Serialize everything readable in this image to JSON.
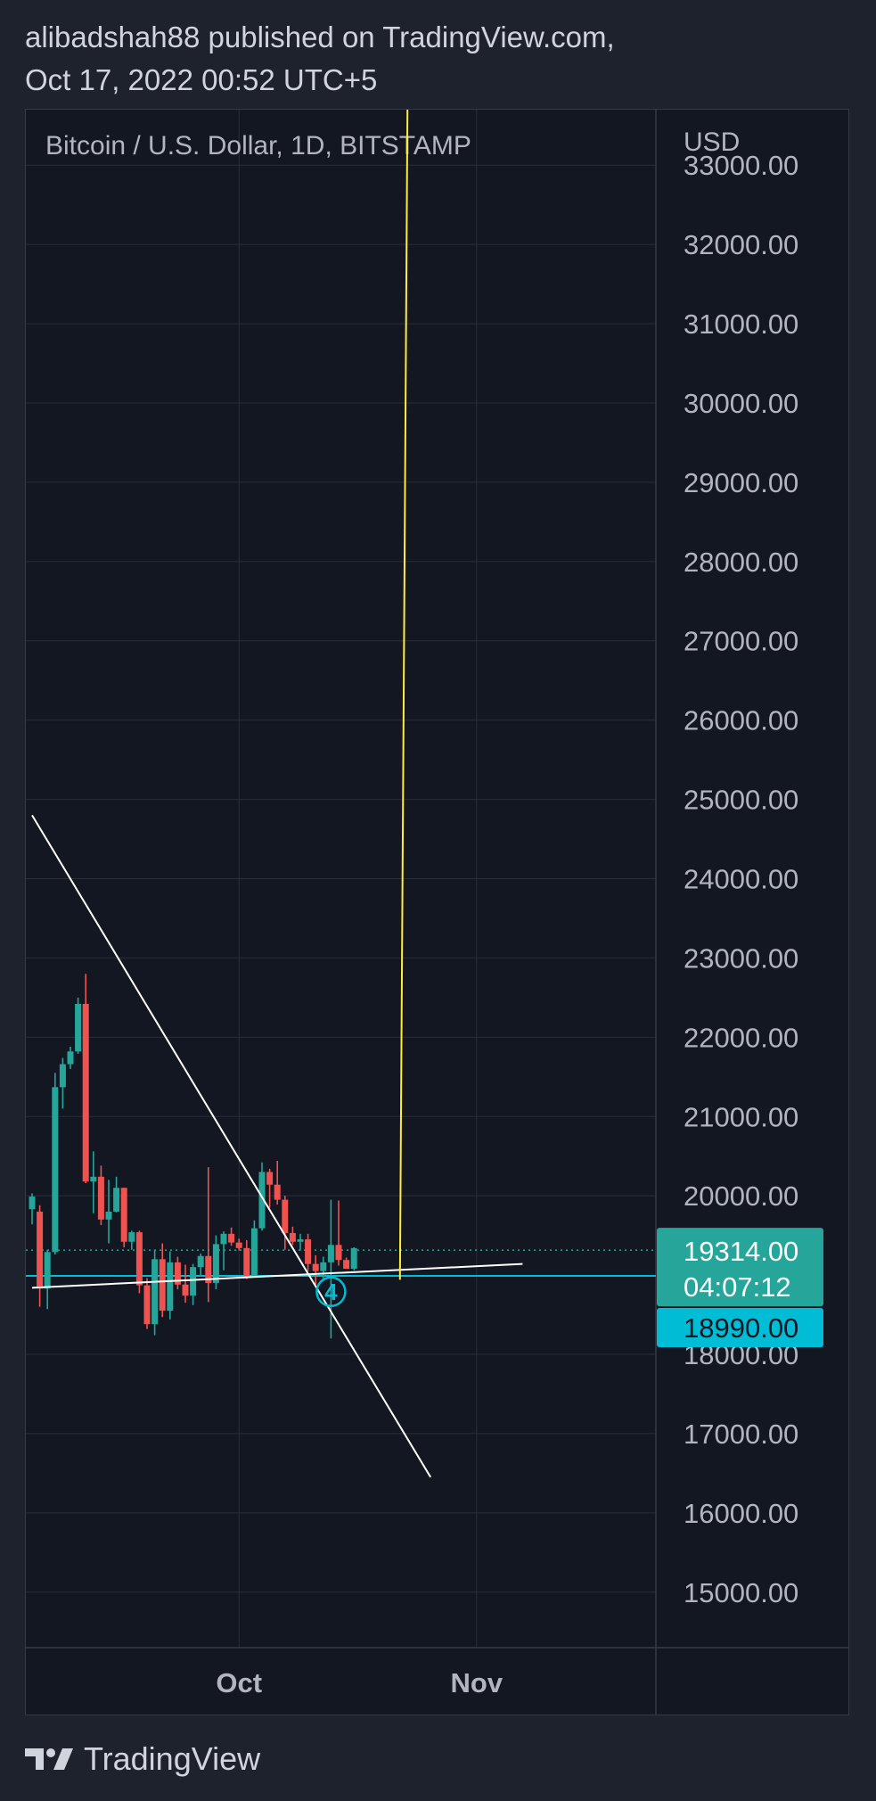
{
  "header": {
    "line1": "alibadshah88 published on TradingView.com,",
    "line2": "Oct 17, 2022 00:52 UTC+5"
  },
  "footer": {
    "brand": "TradingView"
  },
  "colors": {
    "background": "#131722",
    "grid": "#2a2e39",
    "up": "#26a69a",
    "down": "#ef5350",
    "trendline": "#ffffff",
    "vertical_line": "#ffeb3b",
    "level_line": "#00bcd4",
    "price_tag": "#26a69a",
    "level_tag": "#00bcd4"
  },
  "chart_data": {
    "type": "candlestick",
    "title": "Bitcoin / U.S. Dollar, 1D, BITSTAMP",
    "y_unit": "USD",
    "y_ticks": [
      33000,
      32000,
      31000,
      30000,
      29000,
      28000,
      27000,
      26000,
      25000,
      24000,
      23000,
      22000,
      21000,
      20000,
      18000,
      17000,
      16000,
      15000
    ],
    "y_tick_labels": [
      "33000.00",
      "32000.00",
      "31000.00",
      "30000.00",
      "29000.00",
      "28000.00",
      "27000.00",
      "26000.00",
      "25000.00",
      "24000.00",
      "23000.00",
      "22000.00",
      "21000.00",
      "20000.00",
      "18000.00",
      "17000.00",
      "16000.00",
      "15000.00"
    ],
    "ylim": [
      14300,
      33700
    ],
    "x_labels": [
      {
        "date": "2022-10-01",
        "label": "Oct"
      },
      {
        "date": "2022-11-01",
        "label": "Nov"
      }
    ],
    "xlim": [
      "2022-09-04",
      "2022-11-07"
    ],
    "candles": [
      {
        "date": "2022-09-04",
        "open": 19830,
        "high": 20030,
        "low": 19640,
        "close": 19990
      },
      {
        "date": "2022-09-05",
        "open": 19800,
        "high": 19880,
        "low": 18600,
        "close": 18830
      },
      {
        "date": "2022-09-06",
        "open": 18830,
        "high": 19320,
        "low": 18570,
        "close": 19290
      },
      {
        "date": "2022-09-07",
        "open": 19290,
        "high": 21550,
        "low": 19260,
        "close": 21370
      },
      {
        "date": "2022-09-08",
        "open": 21370,
        "high": 21740,
        "low": 21100,
        "close": 21660
      },
      {
        "date": "2022-09-09",
        "open": 21660,
        "high": 21880,
        "low": 21600,
        "close": 21820
      },
      {
        "date": "2022-09-10",
        "open": 21820,
        "high": 22500,
        "low": 21790,
        "close": 22420
      },
      {
        "date": "2022-09-11",
        "open": 22420,
        "high": 22800,
        "low": 20160,
        "close": 20180
      },
      {
        "date": "2022-09-12",
        "open": 20180,
        "high": 20560,
        "low": 19780,
        "close": 20240
      },
      {
        "date": "2022-09-13",
        "open": 20240,
        "high": 20380,
        "low": 19630,
        "close": 19700
      },
      {
        "date": "2022-09-14",
        "open": 19700,
        "high": 20200,
        "low": 19400,
        "close": 19800
      },
      {
        "date": "2022-09-15",
        "open": 19800,
        "high": 20240,
        "low": 19790,
        "close": 20100
      },
      {
        "date": "2022-09-16",
        "open": 20100,
        "high": 20100,
        "low": 19350,
        "close": 19420
      },
      {
        "date": "2022-09-17",
        "open": 19420,
        "high": 19560,
        "low": 19320,
        "close": 19540
      },
      {
        "date": "2022-09-18",
        "open": 19540,
        "high": 19560,
        "low": 18770,
        "close": 18870
      },
      {
        "date": "2022-09-19",
        "open": 18870,
        "high": 18960,
        "low": 18320,
        "close": 18380
      },
      {
        "date": "2022-09-20",
        "open": 18380,
        "high": 19320,
        "low": 18240,
        "close": 19200
      },
      {
        "date": "2022-09-21",
        "open": 19200,
        "high": 19400,
        "low": 18470,
        "close": 18550
      },
      {
        "date": "2022-09-22",
        "open": 18550,
        "high": 19300,
        "low": 18440,
        "close": 19160
      },
      {
        "date": "2022-09-23",
        "open": 19160,
        "high": 19230,
        "low": 18820,
        "close": 18880
      },
      {
        "date": "2022-09-24",
        "open": 18880,
        "high": 19130,
        "low": 18650,
        "close": 18740
      },
      {
        "date": "2022-09-25",
        "open": 18740,
        "high": 19140,
        "low": 18620,
        "close": 19100
      },
      {
        "date": "2022-09-26",
        "open": 19100,
        "high": 19270,
        "low": 18980,
        "close": 19240
      },
      {
        "date": "2022-09-27",
        "open": 19240,
        "high": 20360,
        "low": 18660,
        "close": 18900
      },
      {
        "date": "2022-09-28",
        "open": 18900,
        "high": 19500,
        "low": 18820,
        "close": 19390
      },
      {
        "date": "2022-09-29",
        "open": 19390,
        "high": 19550,
        "low": 19060,
        "close": 19520
      },
      {
        "date": "2022-09-30",
        "open": 19520,
        "high": 19600,
        "low": 19370,
        "close": 19410
      },
      {
        "date": "2022-10-01",
        "open": 19410,
        "high": 19460,
        "low": 19310,
        "close": 19340
      },
      {
        "date": "2022-10-02",
        "open": 19340,
        "high": 19440,
        "low": 18950,
        "close": 18990
      },
      {
        "date": "2022-10-03",
        "open": 18990,
        "high": 19690,
        "low": 18970,
        "close": 19590
      },
      {
        "date": "2022-10-04",
        "open": 19590,
        "high": 20420,
        "low": 19560,
        "close": 20300
      },
      {
        "date": "2022-10-05",
        "open": 20300,
        "high": 20340,
        "low": 19850,
        "close": 20140
      },
      {
        "date": "2022-10-06",
        "open": 20140,
        "high": 20440,
        "low": 19890,
        "close": 19950
      },
      {
        "date": "2022-10-07",
        "open": 19950,
        "high": 20000,
        "low": 19320,
        "close": 19530
      },
      {
        "date": "2022-10-08",
        "open": 19530,
        "high": 19610,
        "low": 19380,
        "close": 19420
      },
      {
        "date": "2022-10-09",
        "open": 19420,
        "high": 19520,
        "low": 19310,
        "close": 19450
      },
      {
        "date": "2022-10-10",
        "open": 19450,
        "high": 19520,
        "low": 19050,
        "close": 19140
      },
      {
        "date": "2022-10-11",
        "open": 19140,
        "high": 19250,
        "low": 18880,
        "close": 19050
      },
      {
        "date": "2022-10-12",
        "open": 19050,
        "high": 19230,
        "low": 18960,
        "close": 19160
      },
      {
        "date": "2022-10-13",
        "open": 19160,
        "high": 19950,
        "low": 18200,
        "close": 19380
      },
      {
        "date": "2022-10-14",
        "open": 19380,
        "high": 19940,
        "low": 19120,
        "close": 19190
      },
      {
        "date": "2022-10-15",
        "open": 19190,
        "high": 19220,
        "low": 19080,
        "close": 19080
      },
      {
        "date": "2022-10-16",
        "open": 19080,
        "high": 19350,
        "low": 19060,
        "close": 19340
      }
    ],
    "annotations": [
      {
        "kind": "trendline",
        "color": "white",
        "points": [
          {
            "date": "2022-09-04",
            "price": 24800
          },
          {
            "date": "2022-10-26",
            "price": 16450
          }
        ]
      },
      {
        "kind": "trendline",
        "color": "white",
        "points": [
          {
            "date": "2022-09-04",
            "price": 18840
          },
          {
            "date": "2022-11-07",
            "price": 19140
          }
        ]
      },
      {
        "kind": "vertical-ray",
        "color": "yellow",
        "points": [
          {
            "date": "2022-10-22",
            "price": 18940
          },
          {
            "date": "2022-10-23",
            "price": 34000
          }
        ]
      },
      {
        "kind": "horizontal-line",
        "color": "cyan",
        "price": 18990
      },
      {
        "kind": "dotted-line",
        "color": "teal",
        "price": 19314
      },
      {
        "kind": "wave-label",
        "text": "4",
        "date": "2022-10-13",
        "price": 18790
      }
    ],
    "last_price": {
      "price": 19314,
      "label": "19314.00",
      "countdown": "04:07:12"
    },
    "level_tag": {
      "price": 18990,
      "label": "18990.00"
    }
  }
}
